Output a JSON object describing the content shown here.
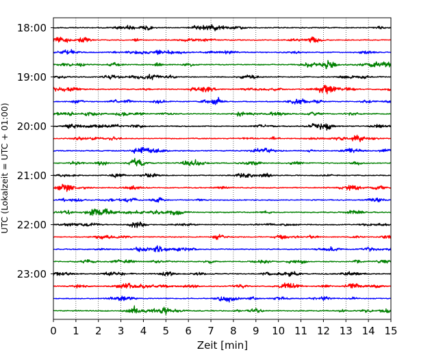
{
  "chart_data": {
    "type": "line",
    "title": "",
    "xlabel": "Zeit  [min]",
    "ylabel": "UTC (Lokalzeit = UTC + 01:00)",
    "xlim": [
      0,
      15
    ],
    "x_ticks": [
      "0",
      "1",
      "2",
      "3",
      "4",
      "5",
      "6",
      "7",
      "8",
      "9",
      "10",
      "11",
      "12",
      "13",
      "14",
      "15"
    ],
    "y_ticks": [
      "18:00",
      "19:00",
      "20:00",
      "21:00",
      "22:00",
      "23:00"
    ],
    "grid": "vertical dotted",
    "legend": "none",
    "trace_interval_minutes": 15,
    "trace_colors": [
      "#000000",
      "#ff0000",
      "#0000ff",
      "#008000"
    ],
    "traces": [
      {
        "start": "18:00",
        "color": "#000000"
      },
      {
        "start": "18:15",
        "color": "#ff0000"
      },
      {
        "start": "18:30",
        "color": "#0000ff"
      },
      {
        "start": "18:45",
        "color": "#008000"
      },
      {
        "start": "19:00",
        "color": "#000000"
      },
      {
        "start": "19:15",
        "color": "#ff0000"
      },
      {
        "start": "19:30",
        "color": "#0000ff"
      },
      {
        "start": "19:45",
        "color": "#008000"
      },
      {
        "start": "20:00",
        "color": "#000000"
      },
      {
        "start": "20:15",
        "color": "#ff0000"
      },
      {
        "start": "20:30",
        "color": "#0000ff"
      },
      {
        "start": "20:45",
        "color": "#008000"
      },
      {
        "start": "21:00",
        "color": "#000000"
      },
      {
        "start": "21:15",
        "color": "#ff0000"
      },
      {
        "start": "21:30",
        "color": "#0000ff"
      },
      {
        "start": "21:45",
        "color": "#008000"
      },
      {
        "start": "22:00",
        "color": "#000000"
      },
      {
        "start": "22:15",
        "color": "#ff0000"
      },
      {
        "start": "22:30",
        "color": "#0000ff"
      },
      {
        "start": "22:45",
        "color": "#008000"
      },
      {
        "start": "23:00",
        "color": "#000000"
      },
      {
        "start": "23:15",
        "color": "#ff0000"
      },
      {
        "start": "23:30",
        "color": "#0000ff"
      },
      {
        "start": "23:45",
        "color": "#008000"
      }
    ]
  }
}
